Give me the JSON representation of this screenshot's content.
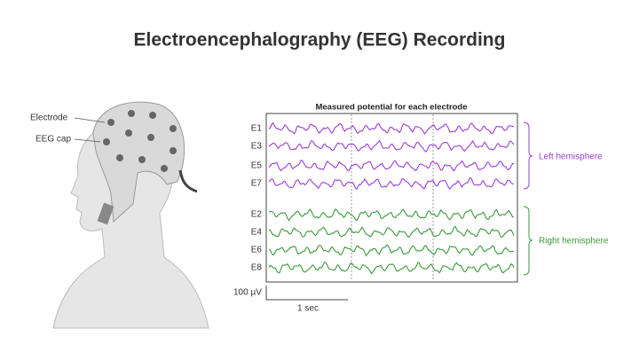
{
  "header": {
    "title": "Electroencephalography (EEG) Recording"
  },
  "head": {
    "labels": [
      "Electrode",
      "EEG cap"
    ]
  },
  "plot": {
    "title": "Measured potential for each electrode",
    "left_group": {
      "label": "Left hemisphere",
      "electrodes": [
        "E1",
        "E3",
        "E5",
        "E7"
      ]
    },
    "right_group": {
      "label": "Right hemisphere",
      "electrodes": [
        "E2",
        "E4",
        "E6",
        "E8"
      ]
    },
    "scale": {
      "amplitude": "100 µV",
      "time": "1 sec"
    }
  }
}
